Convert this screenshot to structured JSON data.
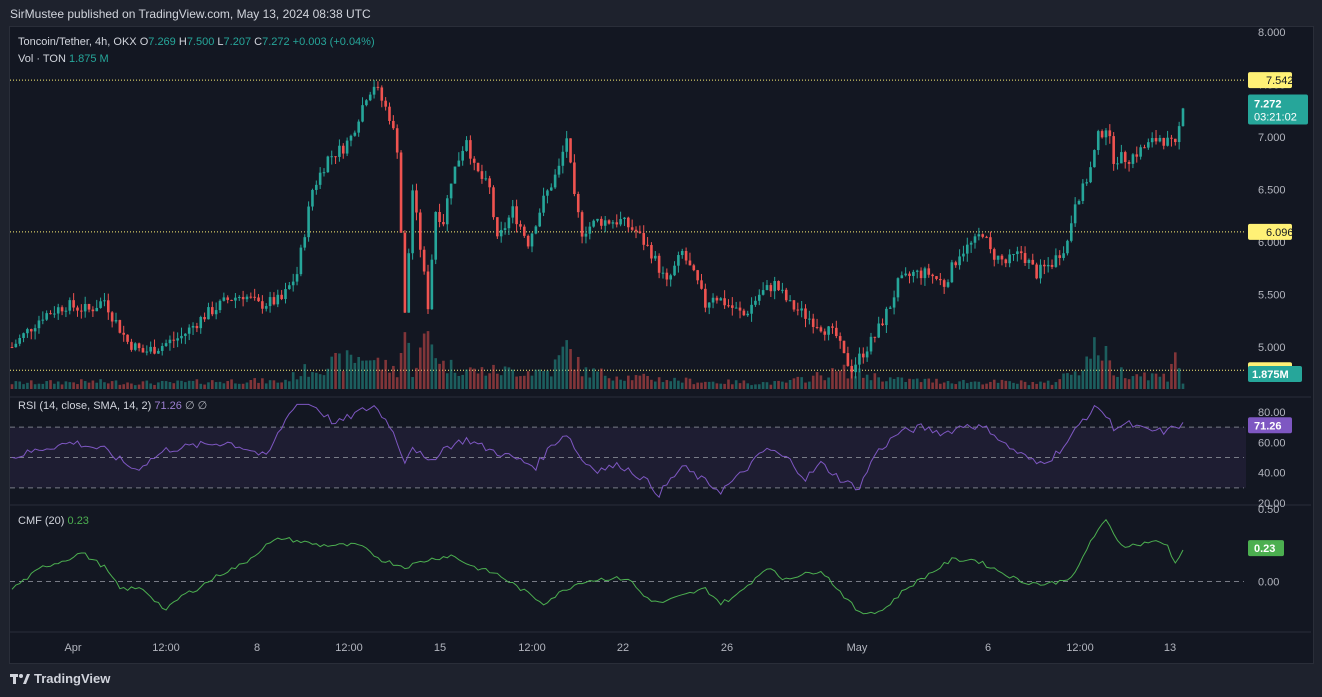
{
  "header": {
    "published": "SirMustee published on TradingView.com, May 13, 2024 08:38 UTC"
  },
  "legend": {
    "symbol": "Toncoin/Tether, 4h, OKX",
    "o_label": "O",
    "o_val": "7.269",
    "h_label": "H",
    "h_val": "7.500",
    "l_label": "L",
    "l_val": "7.207",
    "c_label": "C",
    "c_val": "7.272",
    "change": "+0.003 (+0.04%)",
    "vol_label": "Vol · TON",
    "vol_val": "1.875 M",
    "rsi_label": "RSI (14, close, SMA, 14, 2)",
    "rsi_val": "71.26",
    "rsi_extra": "∅ ∅",
    "cmf_label": "CMF (20)",
    "cmf_val": "0.23"
  },
  "footer": {
    "brand": "TradingView"
  },
  "colors": {
    "up": "#26a69a",
    "down": "#ef5350",
    "rsi": "#7e57c2",
    "cmf": "#4caf50",
    "level": "#fff176",
    "bg": "#131722",
    "grid": "#2a2e39"
  },
  "chart_data": [
    {
      "type": "candlestick",
      "title": "Toncoin/Tether, 4h, OKX",
      "ylim": [
        4.6,
        8.0
      ],
      "yticks": [
        "8.000",
        "7.500",
        "7.000",
        "6.500",
        "6.000",
        "5.500",
        "5.000"
      ],
      "xticks": [
        "Apr",
        "12:00",
        "8",
        "12:00",
        "15",
        "12:00",
        "22",
        "26",
        "May",
        "6",
        "12:00",
        "13"
      ],
      "levels": [
        {
          "value": 7.542,
          "label": "7.542"
        },
        {
          "value": 6.096,
          "label": "6.096"
        },
        {
          "value": 4.778,
          "label": "4.778"
        }
      ],
      "last_price": {
        "value": 7.272,
        "label": "7.272",
        "countdown": "03:21:02"
      },
      "close_path": [
        [
          0,
          5.0
        ],
        [
          8,
          5.3
        ],
        [
          14,
          5.4
        ],
        [
          20,
          5.35
        ],
        [
          24,
          5.45
        ],
        [
          26,
          5.3
        ],
        [
          30,
          5.05
        ],
        [
          34,
          4.95
        ],
        [
          38,
          5.0
        ],
        [
          44,
          5.1
        ],
        [
          50,
          5.3
        ],
        [
          56,
          5.45
        ],
        [
          60,
          5.5
        ],
        [
          64,
          5.4
        ],
        [
          70,
          5.45
        ],
        [
          74,
          5.7
        ],
        [
          78,
          6.5
        ],
        [
          82,
          6.8
        ],
        [
          86,
          6.9
        ],
        [
          88,
          7.0
        ],
        [
          92,
          7.4
        ],
        [
          94,
          7.5
        ],
        [
          98,
          7.2
        ],
        [
          100,
          6.9
        ],
        [
          102,
          5.3
        ],
        [
          104,
          6.5
        ],
        [
          108,
          5.4
        ],
        [
          110,
          6.3
        ],
        [
          112,
          6.2
        ],
        [
          114,
          6.6
        ],
        [
          118,
          7.0
        ],
        [
          120,
          6.7
        ],
        [
          124,
          6.5
        ],
        [
          126,
          6.0
        ],
        [
          130,
          6.3
        ],
        [
          134,
          6.0
        ],
        [
          138,
          6.4
        ],
        [
          142,
          6.7
        ],
        [
          144,
          7.0
        ],
        [
          146,
          6.4
        ],
        [
          148,
          6.1
        ],
        [
          152,
          6.2
        ],
        [
          158,
          6.2
        ],
        [
          162,
          6.1
        ],
        [
          166,
          5.9
        ],
        [
          170,
          5.6
        ],
        [
          174,
          5.9
        ],
        [
          178,
          5.6
        ],
        [
          180,
          5.4
        ],
        [
          182,
          5.5
        ],
        [
          186,
          5.4
        ],
        [
          190,
          5.3
        ],
        [
          194,
          5.5
        ],
        [
          198,
          5.6
        ],
        [
          202,
          5.4
        ],
        [
          206,
          5.3
        ],
        [
          210,
          5.2
        ],
        [
          214,
          5.1
        ],
        [
          216,
          4.9
        ],
        [
          218,
          4.8
        ],
        [
          220,
          4.9
        ],
        [
          224,
          5.1
        ],
        [
          228,
          5.4
        ],
        [
          230,
          5.6
        ],
        [
          234,
          5.7
        ],
        [
          238,
          5.7
        ],
        [
          242,
          5.6
        ],
        [
          246,
          5.9
        ],
        [
          250,
          6.0
        ],
        [
          252,
          6.1
        ],
        [
          254,
          5.9
        ],
        [
          258,
          5.8
        ],
        [
          262,
          5.9
        ],
        [
          266,
          5.7
        ],
        [
          270,
          5.8
        ],
        [
          274,
          6.0
        ],
        [
          276,
          6.4
        ],
        [
          278,
          6.5
        ],
        [
          280,
          6.7
        ],
        [
          282,
          7.0
        ],
        [
          284,
          7.1
        ],
        [
          286,
          6.8
        ],
        [
          290,
          6.8
        ],
        [
          294,
          6.9
        ],
        [
          298,
          7.0
        ],
        [
          302,
          6.9
        ],
        [
          304,
          7.27
        ]
      ],
      "volume_path": [
        [
          0,
          0.1
        ],
        [
          20,
          0.12
        ],
        [
          40,
          0.1
        ],
        [
          60,
          0.14
        ],
        [
          70,
          0.12
        ],
        [
          76,
          0.3
        ],
        [
          82,
          0.4
        ],
        [
          92,
          0.55
        ],
        [
          96,
          0.4
        ],
        [
          100,
          0.3
        ],
        [
          102,
          0.95
        ],
        [
          104,
          0.3
        ],
        [
          108,
          0.9
        ],
        [
          112,
          0.4
        ],
        [
          120,
          0.3
        ],
        [
          140,
          0.3
        ],
        [
          144,
          0.7
        ],
        [
          148,
          0.3
        ],
        [
          160,
          0.2
        ],
        [
          180,
          0.12
        ],
        [
          200,
          0.1
        ],
        [
          216,
          0.3
        ],
        [
          220,
          0.25
        ],
        [
          230,
          0.15
        ],
        [
          250,
          0.12
        ],
        [
          270,
          0.1
        ],
        [
          278,
          0.4
        ],
        [
          282,
          0.75
        ],
        [
          286,
          0.3
        ],
        [
          300,
          0.2
        ],
        [
          302,
          0.72
        ],
        [
          304,
          0.1
        ]
      ],
      "volume_last": "1.875M"
    },
    {
      "type": "line",
      "title": "RSI (14, close, SMA, 14, 2)",
      "ylim": [
        20,
        80
      ],
      "yticks": [
        "80.00",
        "60.00",
        "40.00",
        "20.00"
      ],
      "bands": [
        70,
        50,
        30
      ],
      "last_value": "71.26",
      "path": [
        [
          0,
          50
        ],
        [
          8,
          56
        ],
        [
          16,
          60
        ],
        [
          24,
          55
        ],
        [
          32,
          42
        ],
        [
          40,
          55
        ],
        [
          48,
          58
        ],
        [
          56,
          60
        ],
        [
          62,
          55
        ],
        [
          66,
          50
        ],
        [
          70,
          70
        ],
        [
          74,
          88
        ],
        [
          78,
          85
        ],
        [
          84,
          72
        ],
        [
          90,
          80
        ],
        [
          94,
          84
        ],
        [
          98,
          72
        ],
        [
          102,
          48
        ],
        [
          104,
          58
        ],
        [
          108,
          46
        ],
        [
          112,
          56
        ],
        [
          118,
          62
        ],
        [
          124,
          55
        ],
        [
          130,
          50
        ],
        [
          136,
          44
        ],
        [
          140,
          58
        ],
        [
          144,
          66
        ],
        [
          148,
          48
        ],
        [
          152,
          42
        ],
        [
          158,
          45
        ],
        [
          164,
          36
        ],
        [
          168,
          26
        ],
        [
          174,
          44
        ],
        [
          180,
          34
        ],
        [
          184,
          28
        ],
        [
          188,
          36
        ],
        [
          196,
          56
        ],
        [
          202,
          48
        ],
        [
          206,
          36
        ],
        [
          210,
          46
        ],
        [
          216,
          34
        ],
        [
          220,
          30
        ],
        [
          224,
          52
        ],
        [
          230,
          66
        ],
        [
          236,
          70
        ],
        [
          242,
          66
        ],
        [
          248,
          72
        ],
        [
          254,
          68
        ],
        [
          258,
          58
        ],
        [
          262,
          52
        ],
        [
          266,
          46
        ],
        [
          270,
          50
        ],
        [
          274,
          60
        ],
        [
          278,
          75
        ],
        [
          282,
          84
        ],
        [
          286,
          70
        ],
        [
          290,
          72
        ],
        [
          294,
          68
        ],
        [
          300,
          67
        ],
        [
          302,
          71
        ],
        [
          304,
          71.26
        ]
      ]
    },
    {
      "type": "line",
      "title": "CMF (20)",
      "ylim": [
        -0.3,
        0.5
      ],
      "yticks": [
        "0.50",
        "0.00"
      ],
      "zero_line": 0,
      "last_value": "0.23",
      "path": [
        [
          0,
          -0.05
        ],
        [
          8,
          0.1
        ],
        [
          14,
          0.15
        ],
        [
          18,
          0.2
        ],
        [
          24,
          0.1
        ],
        [
          28,
          -0.05
        ],
        [
          34,
          -0.05
        ],
        [
          40,
          -0.2
        ],
        [
          44,
          -0.1
        ],
        [
          48,
          -0.05
        ],
        [
          54,
          0.05
        ],
        [
          60,
          0.12
        ],
        [
          66,
          0.25
        ],
        [
          70,
          0.3
        ],
        [
          74,
          0.28
        ],
        [
          80,
          0.25
        ],
        [
          86,
          0.25
        ],
        [
          90,
          0.25
        ],
        [
          96,
          0.15
        ],
        [
          102,
          0.1
        ],
        [
          108,
          0.15
        ],
        [
          114,
          0.18
        ],
        [
          120,
          0.1
        ],
        [
          126,
          0.05
        ],
        [
          132,
          -0.05
        ],
        [
          138,
          -0.15
        ],
        [
          144,
          -0.05
        ],
        [
          148,
          0.0
        ],
        [
          154,
          0.02
        ],
        [
          160,
          0.02
        ],
        [
          164,
          -0.1
        ],
        [
          168,
          -0.15
        ],
        [
          174,
          -0.1
        ],
        [
          180,
          -0.05
        ],
        [
          184,
          -0.15
        ],
        [
          188,
          -0.1
        ],
        [
          192,
          0.0
        ],
        [
          196,
          0.1
        ],
        [
          200,
          0.02
        ],
        [
          206,
          0.05
        ],
        [
          210,
          0.08
        ],
        [
          216,
          -0.1
        ],
        [
          220,
          -0.22
        ],
        [
          226,
          -0.2
        ],
        [
          232,
          -0.05
        ],
        [
          238,
          0.05
        ],
        [
          244,
          0.15
        ],
        [
          250,
          0.15
        ],
        [
          254,
          0.1
        ],
        [
          258,
          0.05
        ],
        [
          262,
          0.0
        ],
        [
          268,
          -0.02
        ],
        [
          272,
          0.0
        ],
        [
          276,
          0.05
        ],
        [
          280,
          0.28
        ],
        [
          284,
          0.42
        ],
        [
          288,
          0.25
        ],
        [
          292,
          0.25
        ],
        [
          296,
          0.28
        ],
        [
          300,
          0.25
        ],
        [
          302,
          0.12
        ],
        [
          304,
          0.23
        ]
      ]
    }
  ]
}
